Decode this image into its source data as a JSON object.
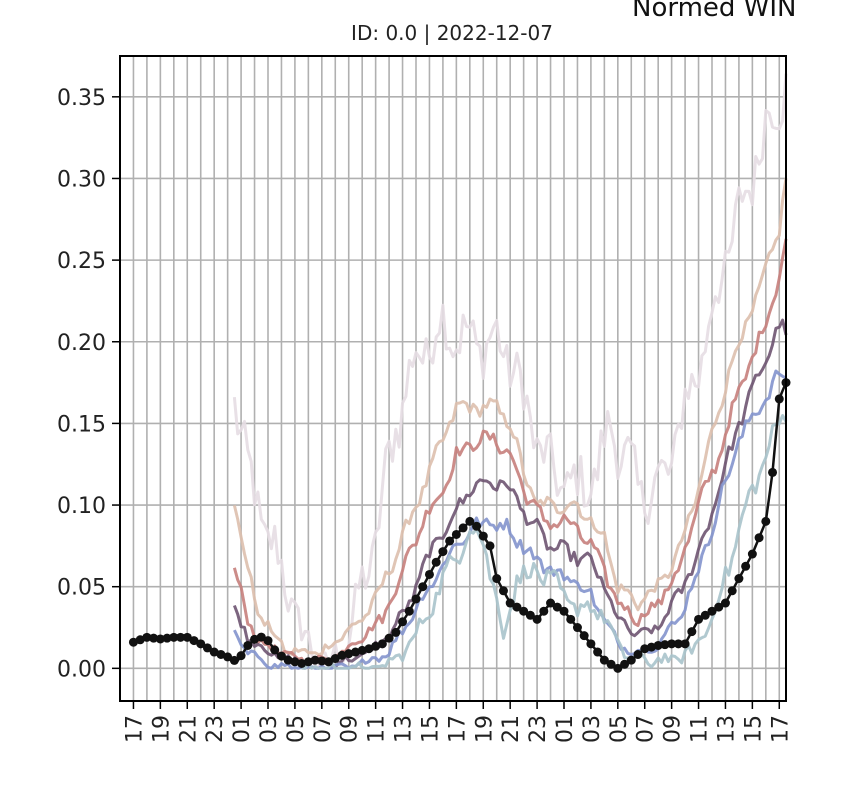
{
  "suptitle": "Normed WIN",
  "chart_data": {
    "type": "line",
    "title": "ID: 0.0 | 2022-12-07",
    "xlabel": "",
    "ylabel": "",
    "grid": true,
    "legend": "none",
    "ylim": [
      -0.02,
      0.375
    ],
    "y_ticks": [
      "0.00",
      "0.05",
      "0.10",
      "0.15",
      "0.20",
      "0.25",
      "0.30",
      "0.35"
    ],
    "x_range_hours": [
      -1,
      48.5
    ],
    "x_ticks": [
      "17",
      "19",
      "21",
      "23",
      "01",
      "03",
      "05",
      "07",
      "09",
      "11",
      "13",
      "15",
      "17",
      "19",
      "21",
      "23",
      "01",
      "03",
      "05",
      "07",
      "09",
      "11",
      "13",
      "15",
      "17"
    ],
    "x_tick_hours": [
      0,
      2,
      4,
      6,
      8,
      10,
      12,
      14,
      16,
      18,
      20,
      22,
      24,
      26,
      28,
      30,
      32,
      34,
      36,
      38,
      40,
      42,
      44,
      46,
      48
    ],
    "x_vgrid_every_hour": true,
    "series": [
      {
        "color": "#e6dde3",
        "noise": 0.015,
        "start": 7.5,
        "points": [
          [
            7.5,
            0.17
          ],
          [
            8.5,
            0.12
          ],
          [
            10,
            0.08
          ],
          [
            11.5,
            0.05
          ],
          [
            12.5,
            0.02
          ],
          [
            13.5,
            0.01
          ],
          [
            14.5,
            0.0
          ],
          [
            16,
            0.02
          ],
          [
            18,
            0.08
          ],
          [
            19.5,
            0.15
          ],
          [
            21,
            0.19
          ],
          [
            22,
            0.2
          ],
          [
            23,
            0.21
          ],
          [
            25,
            0.2
          ],
          [
            27,
            0.2
          ],
          [
            28,
            0.19
          ],
          [
            30,
            0.14
          ],
          [
            31,
            0.12
          ],
          [
            33,
            0.11
          ],
          [
            34.5,
            0.12
          ],
          [
            35.5,
            0.15
          ],
          [
            36.5,
            0.13
          ],
          [
            37.5,
            0.11
          ],
          [
            39,
            0.11
          ],
          [
            40,
            0.13
          ],
          [
            41,
            0.16
          ],
          [
            42.5,
            0.2
          ],
          [
            44,
            0.25
          ],
          [
            45.5,
            0.29
          ],
          [
            47,
            0.33
          ],
          [
            48,
            0.35
          ],
          [
            48.5,
            0.36
          ]
        ]
      },
      {
        "color": "#ddbfad",
        "noise": 0.004,
        "start": 7.5,
        "points": [
          [
            7.5,
            0.1
          ],
          [
            8.5,
            0.06
          ],
          [
            9.5,
            0.03
          ],
          [
            10.5,
            0.02
          ],
          [
            11.5,
            0.01
          ],
          [
            12.5,
            0.01
          ],
          [
            14,
            0.01
          ],
          [
            15.5,
            0.02
          ],
          [
            17,
            0.03
          ],
          [
            18.5,
            0.05
          ],
          [
            20,
            0.08
          ],
          [
            21.5,
            0.11
          ],
          [
            23,
            0.14
          ],
          [
            24,
            0.16
          ],
          [
            25.5,
            0.16
          ],
          [
            27,
            0.16
          ],
          [
            28,
            0.15
          ],
          [
            29,
            0.12
          ],
          [
            30,
            0.1
          ],
          [
            31.5,
            0.1
          ],
          [
            33,
            0.1
          ],
          [
            34,
            0.09
          ],
          [
            35,
            0.08
          ],
          [
            36,
            0.05
          ],
          [
            37.5,
            0.04
          ],
          [
            39,
            0.05
          ],
          [
            40.5,
            0.07
          ],
          [
            42,
            0.11
          ],
          [
            43.5,
            0.16
          ],
          [
            45,
            0.2
          ],
          [
            46.5,
            0.23
          ],
          [
            48,
            0.27
          ],
          [
            48.5,
            0.3
          ]
        ]
      },
      {
        "color": "#c7807c",
        "noise": 0.004,
        "start": 7.5,
        "points": [
          [
            7.5,
            0.06
          ],
          [
            8.5,
            0.03
          ],
          [
            9.5,
            0.015
          ],
          [
            11,
            0.01
          ],
          [
            12.5,
            0.005
          ],
          [
            14,
            0.005
          ],
          [
            15.5,
            0.01
          ],
          [
            17,
            0.02
          ],
          [
            18.5,
            0.03
          ],
          [
            20,
            0.06
          ],
          [
            21.5,
            0.09
          ],
          [
            23,
            0.11
          ],
          [
            24,
            0.13
          ],
          [
            25.5,
            0.14
          ],
          [
            27,
            0.14
          ],
          [
            28,
            0.13
          ],
          [
            29,
            0.11
          ],
          [
            30.5,
            0.09
          ],
          [
            32,
            0.09
          ],
          [
            33,
            0.085
          ],
          [
            34,
            0.075
          ],
          [
            35,
            0.06
          ],
          [
            36,
            0.04
          ],
          [
            37.5,
            0.03
          ],
          [
            39,
            0.04
          ],
          [
            40.5,
            0.06
          ],
          [
            42,
            0.1
          ],
          [
            43.5,
            0.13
          ],
          [
            45,
            0.17
          ],
          [
            46.5,
            0.2
          ],
          [
            48,
            0.24
          ],
          [
            48.5,
            0.26
          ]
        ]
      },
      {
        "color": "#6e5471",
        "noise": 0.004,
        "start": 7.5,
        "points": [
          [
            7.5,
            0.035
          ],
          [
            8.5,
            0.02
          ],
          [
            10,
            0.01
          ],
          [
            11.5,
            0.005
          ],
          [
            13,
            0.003
          ],
          [
            14.5,
            0.003
          ],
          [
            16,
            0.005
          ],
          [
            17.5,
            0.01
          ],
          [
            19,
            0.02
          ],
          [
            20.5,
            0.04
          ],
          [
            22,
            0.07
          ],
          [
            23.5,
            0.09
          ],
          [
            25,
            0.11
          ],
          [
            26.5,
            0.115
          ],
          [
            28,
            0.11
          ],
          [
            29.5,
            0.09
          ],
          [
            31,
            0.075
          ],
          [
            32.5,
            0.07
          ],
          [
            34,
            0.065
          ],
          [
            35,
            0.05
          ],
          [
            36,
            0.03
          ],
          [
            37.5,
            0.02
          ],
          [
            39,
            0.025
          ],
          [
            40.5,
            0.045
          ],
          [
            42,
            0.07
          ],
          [
            43.5,
            0.11
          ],
          [
            45,
            0.15
          ],
          [
            46.5,
            0.18
          ],
          [
            48,
            0.21
          ],
          [
            48.5,
            0.205
          ]
        ]
      },
      {
        "color": "#8394cd",
        "noise": 0.004,
        "start": 7.5,
        "points": [
          [
            7.5,
            0.02
          ],
          [
            8.5,
            0.01
          ],
          [
            10,
            0.003
          ],
          [
            12,
            0.0
          ],
          [
            14,
            0.0
          ],
          [
            16,
            0.0
          ],
          [
            17.5,
            0.005
          ],
          [
            19,
            0.01
          ],
          [
            20.5,
            0.03
          ],
          [
            22,
            0.05
          ],
          [
            23.5,
            0.07
          ],
          [
            25,
            0.085
          ],
          [
            26.5,
            0.09
          ],
          [
            28,
            0.085
          ],
          [
            29.5,
            0.07
          ],
          [
            31,
            0.06
          ],
          [
            32.5,
            0.055
          ],
          [
            34,
            0.045
          ],
          [
            35,
            0.03
          ],
          [
            36,
            0.015
          ],
          [
            37.5,
            0.01
          ],
          [
            39,
            0.015
          ],
          [
            40.5,
            0.03
          ],
          [
            42,
            0.06
          ],
          [
            43.5,
            0.1
          ],
          [
            45,
            0.14
          ],
          [
            46.5,
            0.16
          ],
          [
            48,
            0.18
          ],
          [
            48.5,
            0.175
          ]
        ]
      },
      {
        "color": "#a8c3cb",
        "noise": 0.006,
        "start": 12.5,
        "points": [
          [
            12.5,
            0.0
          ],
          [
            15,
            0.0
          ],
          [
            18,
            0.0
          ],
          [
            19.5,
            0.005
          ],
          [
            21,
            0.02
          ],
          [
            22.5,
            0.045
          ],
          [
            24,
            0.07
          ],
          [
            25,
            0.085
          ],
          [
            26,
            0.08
          ],
          [
            27,
            0.04
          ],
          [
            27.5,
            0.02
          ],
          [
            28.5,
            0.055
          ],
          [
            30,
            0.06
          ],
          [
            31.5,
            0.05
          ],
          [
            33,
            0.035
          ],
          [
            34,
            0.04
          ],
          [
            35,
            0.03
          ],
          [
            36,
            0.015
          ],
          [
            37,
            0.005
          ],
          [
            38.5,
            0.005
          ],
          [
            40,
            0.005
          ],
          [
            41.5,
            0.01
          ],
          [
            43,
            0.03
          ],
          [
            44.5,
            0.07
          ],
          [
            46,
            0.11
          ],
          [
            47.5,
            0.14
          ],
          [
            48.5,
            0.16
          ]
        ]
      },
      {
        "color": "#111111",
        "noise": 0.0,
        "markers": true,
        "start": 0,
        "points": [
          [
            0,
            0.016
          ],
          [
            1,
            0.019
          ],
          [
            2,
            0.018
          ],
          [
            3,
            0.019
          ],
          [
            4,
            0.019
          ],
          [
            5,
            0.015
          ],
          [
            6,
            0.01
          ],
          [
            7,
            0.007
          ],
          [
            7.7,
            0.004
          ],
          [
            8.5,
            0.014
          ],
          [
            9.3,
            0.02
          ],
          [
            10,
            0.017
          ],
          [
            10.7,
            0.009
          ],
          [
            11.5,
            0.005
          ],
          [
            12.5,
            0.003
          ],
          [
            13.5,
            0.005
          ],
          [
            14.5,
            0.004
          ],
          [
            15.5,
            0.008
          ],
          [
            16.5,
            0.01
          ],
          [
            17.5,
            0.012
          ],
          [
            18.5,
            0.015
          ],
          [
            19.5,
            0.022
          ],
          [
            20.5,
            0.035
          ],
          [
            21.5,
            0.05
          ],
          [
            22.5,
            0.065
          ],
          [
            23.5,
            0.078
          ],
          [
            24.5,
            0.086
          ],
          [
            25,
            0.09
          ],
          [
            25.5,
            0.087
          ],
          [
            26.5,
            0.075
          ],
          [
            27,
            0.055
          ],
          [
            28,
            0.04
          ],
          [
            29,
            0.035
          ],
          [
            30,
            0.03
          ],
          [
            31,
            0.04
          ],
          [
            32,
            0.035
          ],
          [
            33,
            0.025
          ],
          [
            34,
            0.015
          ],
          [
            35,
            0.005
          ],
          [
            36,
            0.0
          ],
          [
            37,
            0.005
          ],
          [
            38,
            0.012
          ],
          [
            39,
            0.014
          ],
          [
            40,
            0.015
          ],
          [
            41,
            0.015
          ],
          [
            42,
            0.03
          ],
          [
            43,
            0.035
          ],
          [
            44,
            0.04
          ],
          [
            45,
            0.055
          ],
          [
            46,
            0.07
          ],
          [
            47,
            0.09
          ],
          [
            47.5,
            0.12
          ],
          [
            48,
            0.165
          ],
          [
            48.5,
            0.175
          ]
        ]
      }
    ]
  }
}
